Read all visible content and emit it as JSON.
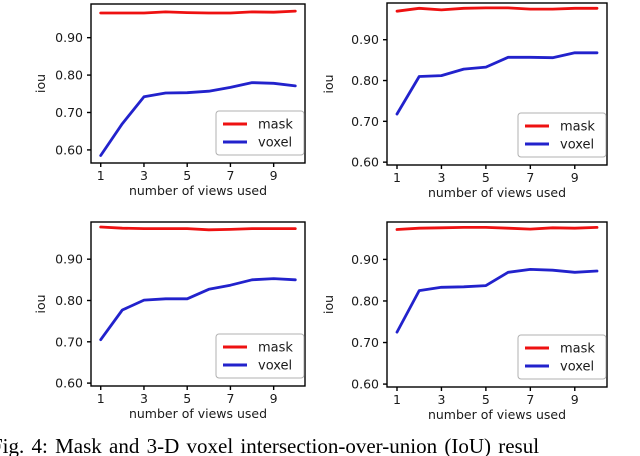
{
  "figure": {
    "caption": "Fig. 4: Mask and 3-D voxel intersection-over-union (IoU) resul",
    "background": "#ffffff"
  },
  "colors": {
    "mask": "#ee1111",
    "voxel": "#2222cc",
    "text": "#1a1a1a",
    "axes": "#000000",
    "legend_border": "#b0b0b0"
  },
  "chart_data": [
    {
      "type": "line",
      "position": "top-left",
      "xlabel": "number of views used",
      "ylabel": "iou",
      "x": [
        1,
        2,
        3,
        4,
        5,
        6,
        7,
        8,
        9,
        10
      ],
      "xticks": [
        1,
        3,
        5,
        7,
        9
      ],
      "yticks": [
        "0.60",
        "0.70",
        "0.80",
        "0.90"
      ],
      "xlim": [
        0.55,
        10.45
      ],
      "ylim": [
        0.565,
        0.99
      ],
      "grid": false,
      "legend": {
        "position": "lower right",
        "entries": [
          "mask",
          "voxel"
        ]
      },
      "series": [
        {
          "name": "mask",
          "color": "#ee1111",
          "values": [
            0.966,
            0.966,
            0.966,
            0.969,
            0.967,
            0.966,
            0.966,
            0.969,
            0.968,
            0.971
          ]
        },
        {
          "name": "voxel",
          "color": "#2222cc",
          "values": [
            0.585,
            0.67,
            0.742,
            0.752,
            0.753,
            0.757,
            0.767,
            0.78,
            0.778,
            0.771
          ]
        }
      ]
    },
    {
      "type": "line",
      "position": "top-right",
      "xlabel": "number of views used",
      "ylabel": "iou",
      "x": [
        1,
        2,
        3,
        4,
        5,
        6,
        7,
        8,
        9,
        10
      ],
      "xticks": [
        1,
        3,
        5,
        7,
        9
      ],
      "yticks": [
        "0.60",
        "0.70",
        "0.80",
        "0.90"
      ],
      "xlim": [
        0.55,
        10.45
      ],
      "ylim": [
        0.593,
        0.99
      ],
      "grid": false,
      "legend": {
        "position": "lower right",
        "entries": [
          "mask",
          "voxel"
        ]
      },
      "series": [
        {
          "name": "mask",
          "color": "#ee1111",
          "values": [
            0.97,
            0.977,
            0.973,
            0.977,
            0.978,
            0.978,
            0.975,
            0.975,
            0.977,
            0.977
          ]
        },
        {
          "name": "voxel",
          "color": "#2222cc",
          "values": [
            0.718,
            0.81,
            0.812,
            0.828,
            0.833,
            0.857,
            0.857,
            0.856,
            0.868,
            0.868
          ]
        }
      ]
    },
    {
      "type": "line",
      "position": "bottom-left",
      "xlabel": "number of views used",
      "ylabel": "iou",
      "x": [
        1,
        2,
        3,
        4,
        5,
        6,
        7,
        8,
        9,
        10
      ],
      "xticks": [
        1,
        3,
        5,
        7,
        9
      ],
      "yticks": [
        "0.60",
        "0.70",
        "0.80",
        "0.90"
      ],
      "xlim": [
        0.55,
        10.45
      ],
      "ylim": [
        0.593,
        0.99
      ],
      "grid": false,
      "legend": {
        "position": "lower right",
        "entries": [
          "mask",
          "voxel"
        ]
      },
      "series": [
        {
          "name": "mask",
          "color": "#ee1111",
          "values": [
            0.978,
            0.975,
            0.974,
            0.974,
            0.974,
            0.971,
            0.972,
            0.974,
            0.974,
            0.974
          ]
        },
        {
          "name": "voxel",
          "color": "#2222cc",
          "values": [
            0.705,
            0.777,
            0.801,
            0.804,
            0.804,
            0.827,
            0.837,
            0.85,
            0.853,
            0.85
          ]
        }
      ]
    },
    {
      "type": "line",
      "position": "bottom-right",
      "xlabel": "number of views used",
      "ylabel": "iou",
      "x": [
        1,
        2,
        3,
        4,
        5,
        6,
        7,
        8,
        9,
        10
      ],
      "xticks": [
        1,
        3,
        5,
        7,
        9
      ],
      "yticks": [
        "0.60",
        "0.70",
        "0.80",
        "0.90"
      ],
      "xlim": [
        0.55,
        10.45
      ],
      "ylim": [
        0.593,
        0.99
      ],
      "grid": false,
      "legend": {
        "position": "lower right",
        "entries": [
          "mask",
          "voxel"
        ]
      },
      "series": [
        {
          "name": "mask",
          "color": "#ee1111",
          "values": [
            0.972,
            0.975,
            0.976,
            0.977,
            0.977,
            0.975,
            0.973,
            0.976,
            0.975,
            0.977
          ]
        },
        {
          "name": "voxel",
          "color": "#2222cc",
          "values": [
            0.725,
            0.825,
            0.833,
            0.834,
            0.837,
            0.869,
            0.876,
            0.874,
            0.869,
            0.872
          ]
        }
      ]
    }
  ]
}
